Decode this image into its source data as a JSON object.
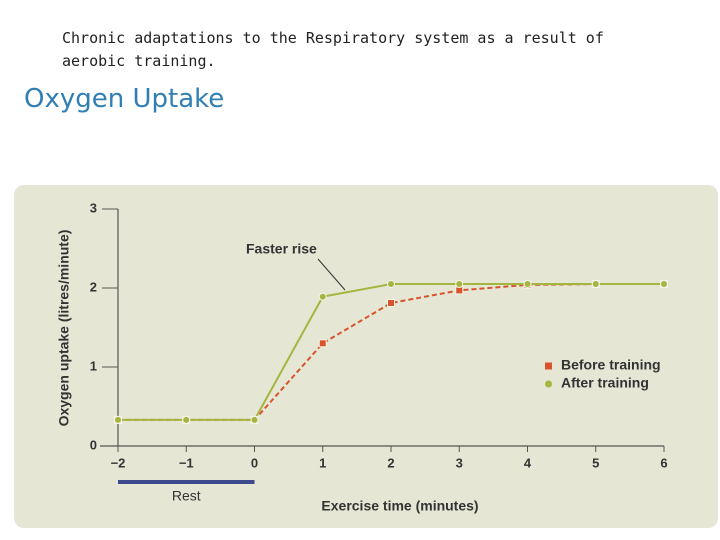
{
  "slide": {
    "title": "Chronic adaptations to the Respiratory system as a result of aerobic training.",
    "heading": "Oxygen Uptake"
  },
  "chart_data": {
    "type": "line",
    "x": [
      -2,
      -1,
      0,
      1,
      2,
      3,
      4,
      5,
      6
    ],
    "series": [
      {
        "name": "Before training",
        "color": "#d9532c",
        "marker": "square",
        "dashed": true,
        "values": [
          0.33,
          0.33,
          0.33,
          1.3,
          1.81,
          1.97,
          2.04,
          2.05,
          2.05
        ]
      },
      {
        "name": "After training",
        "color": "#a4b540",
        "marker": "circle",
        "dashed": false,
        "values": [
          0.33,
          0.33,
          0.33,
          1.89,
          2.05,
          2.05,
          2.05,
          2.05,
          2.05
        ]
      }
    ],
    "xlabel": "Exercise time (minutes)",
    "ylabel": "Oxygen uptake (litres/minute)",
    "xlim": [
      -2,
      6
    ],
    "xticks": [
      {
        "value": -2,
        "label": "−2"
      },
      {
        "value": -1,
        "label": "−1"
      },
      0,
      1,
      2,
      3,
      4,
      5,
      6
    ],
    "ylim": [
      0,
      3
    ],
    "yticks": [
      0,
      1,
      2,
      3
    ],
    "grid": false,
    "legend_position": "center right",
    "annotations": [
      {
        "text": "Faster rise"
      },
      {
        "text": "Rest",
        "x_span": [
          -2,
          0
        ]
      }
    ]
  }
}
